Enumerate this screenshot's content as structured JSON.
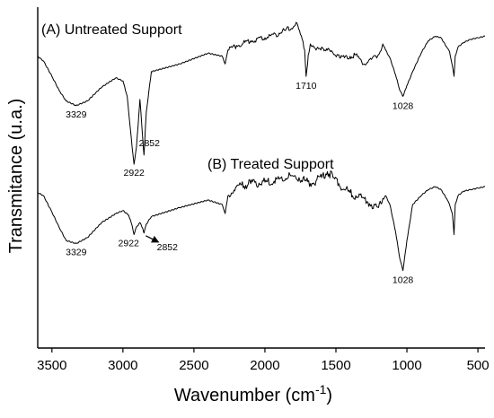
{
  "chart_data": {
    "type": "line",
    "xlabel_main": "Wavenumber (cm",
    "xlabel_sup": "-1",
    "xlabel_close": ")",
    "ylabel": "Transmitance (u.a.)",
    "xlim": [
      3600,
      450
    ],
    "x_reversed": true,
    "y_ticks_shown": false,
    "grid": false,
    "x_ticks": [
      3500,
      3000,
      2500,
      2000,
      1500,
      1000,
      500
    ],
    "x_tick_labels": [
      "3500",
      "3000",
      "2500",
      "2000",
      "1500",
      "1000",
      "500"
    ],
    "series": [
      {
        "name": "(A) Untreated Support",
        "x": [
          3600,
          3560,
          3500,
          3450,
          3400,
          3329,
          3250,
          3150,
          3050,
          3000,
          2970,
          2935,
          2922,
          2905,
          2880,
          2860,
          2852,
          2835,
          2800,
          2600,
          2400,
          2300,
          2280,
          2260,
          2200,
          2100,
          2000,
          1900,
          1800,
          1780,
          1750,
          1720,
          1710,
          1695,
          1680,
          1640,
          1600,
          1560,
          1520,
          1480,
          1440,
          1400,
          1360,
          1300,
          1250,
          1200,
          1170,
          1150,
          1120,
          1080,
          1050,
          1028,
          1000,
          960,
          900,
          850,
          800,
          760,
          720,
          700,
          680,
          668,
          660,
          640,
          600,
          550,
          500,
          450
        ],
        "y": [
          0.74,
          0.71,
          0.61,
          0.52,
          0.45,
          0.42,
          0.45,
          0.54,
          0.6,
          0.58,
          0.48,
          0.15,
          0.04,
          0.15,
          0.46,
          0.2,
          0.1,
          0.38,
          0.64,
          0.69,
          0.76,
          0.74,
          0.69,
          0.78,
          0.81,
          0.84,
          0.86,
          0.89,
          0.93,
          0.96,
          0.88,
          0.78,
          0.61,
          0.75,
          0.82,
          0.78,
          0.8,
          0.78,
          0.76,
          0.75,
          0.73,
          0.74,
          0.75,
          0.69,
          0.72,
          0.75,
          0.82,
          0.78,
          0.73,
          0.62,
          0.52,
          0.48,
          0.55,
          0.64,
          0.76,
          0.84,
          0.87,
          0.86,
          0.8,
          0.77,
          0.68,
          0.61,
          0.74,
          0.8,
          0.83,
          0.85,
          0.86,
          0.87
        ]
      },
      {
        "name": "(B) Treated Support",
        "x": [
          3600,
          3560,
          3500,
          3450,
          3400,
          3329,
          3250,
          3150,
          3050,
          3000,
          2960,
          2935,
          2922,
          2905,
          2880,
          2860,
          2852,
          2835,
          2800,
          2600,
          2400,
          2300,
          2280,
          2260,
          2200,
          2100,
          2000,
          1900,
          1800,
          1760,
          1720,
          1680,
          1640,
          1600,
          1560,
          1520,
          1480,
          1440,
          1400,
          1360,
          1300,
          1250,
          1200,
          1170,
          1150,
          1120,
          1080,
          1050,
          1028,
          1000,
          960,
          900,
          850,
          800,
          760,
          720,
          700,
          680,
          668,
          660,
          640,
          600,
          550,
          500,
          450
        ],
        "y": [
          0.78,
          0.76,
          0.65,
          0.55,
          0.46,
          0.44,
          0.48,
          0.58,
          0.64,
          0.66,
          0.63,
          0.56,
          0.5,
          0.55,
          0.58,
          0.54,
          0.51,
          0.57,
          0.62,
          0.68,
          0.73,
          0.7,
          0.64,
          0.76,
          0.82,
          0.84,
          0.85,
          0.87,
          0.89,
          0.88,
          0.86,
          0.84,
          0.86,
          0.88,
          0.92,
          0.88,
          0.84,
          0.8,
          0.78,
          0.76,
          0.74,
          0.7,
          0.68,
          0.74,
          0.76,
          0.7,
          0.52,
          0.34,
          0.26,
          0.46,
          0.7,
          0.76,
          0.8,
          0.82,
          0.8,
          0.74,
          0.7,
          0.64,
          0.5,
          0.7,
          0.76,
          0.79,
          0.8,
          0.81,
          0.82
        ]
      }
    ],
    "annotations": [
      {
        "text": "3329",
        "series": 0,
        "x": 3329
      },
      {
        "text": "2922",
        "series": 0,
        "x": 2922
      },
      {
        "text": "2852",
        "series": 0,
        "x": 2852
      },
      {
        "text": "1710",
        "series": 0,
        "x": 1710
      },
      {
        "text": "1028",
        "series": 0,
        "x": 1028
      },
      {
        "text": "3329",
        "series": 1,
        "x": 3329
      },
      {
        "text": "2922",
        "series": 1,
        "x": 2922
      },
      {
        "text": "2852",
        "series": 1,
        "x": 2852
      },
      {
        "text": "1028",
        "series": 1,
        "x": 1028
      }
    ]
  }
}
